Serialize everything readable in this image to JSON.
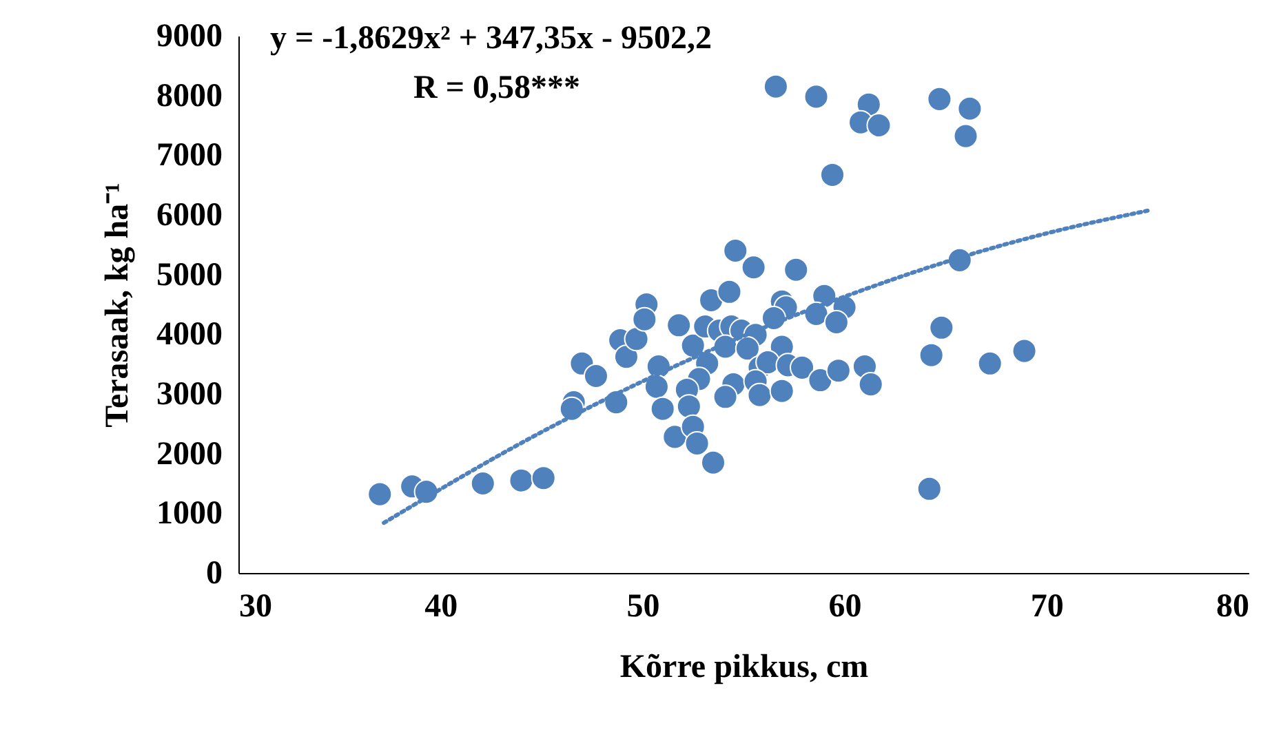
{
  "chart_data": {
    "type": "scatter",
    "xlabel": "Kõrre pikkus, cm",
    "ylabel": "Terasaak, kg ha⁻¹",
    "annotations": [
      "y = -1,8629x² + 347,35x - 9502,2",
      "R = 0,58***"
    ],
    "xlim": [
      30,
      80
    ],
    "xticks": [
      30,
      40,
      50,
      60,
      70,
      80
    ],
    "ylim": [
      0,
      9000
    ],
    "yticks": [
      0,
      1000,
      2000,
      3000,
      4000,
      5000,
      6000,
      7000,
      8000,
      9000
    ],
    "grid": false,
    "marker": "circle",
    "series": [
      {
        "color": "#4f81bd",
        "x": [
          37.0,
          38.6,
          39.3,
          42.1,
          44.0,
          45.1,
          46.6,
          46.5,
          48.7,
          47.0,
          47.7,
          48.9,
          49.2,
          49.7,
          50.2,
          50.1,
          51.8,
          53.4,
          54.3,
          52.5,
          53.1,
          53.8,
          54.4,
          54.9,
          55.6,
          54.1,
          55.2,
          56.9,
          56.9,
          57.1,
          56.5,
          59.0,
          58.6,
          60.0,
          59.6,
          50.8,
          50.7,
          51.0,
          53.2,
          52.8,
          52.2,
          52.3,
          51.6,
          52.5,
          52.7,
          53.5,
          54.5,
          54.1,
          55.8,
          56.2,
          55.6,
          55.8,
          56.9,
          57.2,
          57.9,
          58.8,
          59.7,
          61.0,
          61.3,
          64.3,
          64.2,
          64.8,
          65.7,
          67.2,
          68.9,
          54.6,
          55.5,
          57.6,
          56.6,
          58.6,
          61.2,
          60.8,
          61.7,
          59.4,
          64.7,
          66.2,
          66.0
        ],
        "values": [
          1320,
          1450,
          1360,
          1500,
          1550,
          1590,
          2860,
          2750,
          2860,
          3510,
          3300,
          3900,
          3620,
          3920,
          4500,
          4250,
          4150,
          4570,
          4710,
          3810,
          4130,
          4060,
          4130,
          4060,
          3990,
          3790,
          3760,
          3790,
          4550,
          4450,
          4270,
          4640,
          4340,
          4450,
          4200,
          3460,
          3120,
          2750,
          3510,
          3250,
          3070,
          2790,
          2280,
          2450,
          2170,
          1850,
          3160,
          2950,
          3440,
          3530,
          3210,
          2980,
          3050,
          3480,
          3440,
          3230,
          3390,
          3460,
          3160,
          3650,
          1410,
          4110,
          5240,
          3510,
          3720,
          5400,
          5120,
          5080,
          8150,
          7980,
          7850,
          7550,
          7500,
          6670,
          7940,
          7780,
          7320
        ]
      },
      {
        "type": "line",
        "line_style": "dotted",
        "marker": "none",
        "color": "#4f81bd",
        "x": [
          37.2,
          45,
          50,
          55,
          60,
          65,
          70,
          75
        ],
        "values": [
          840,
          2360,
          3210,
          3970,
          4630,
          5210,
          5690,
          6070
        ]
      }
    ]
  }
}
